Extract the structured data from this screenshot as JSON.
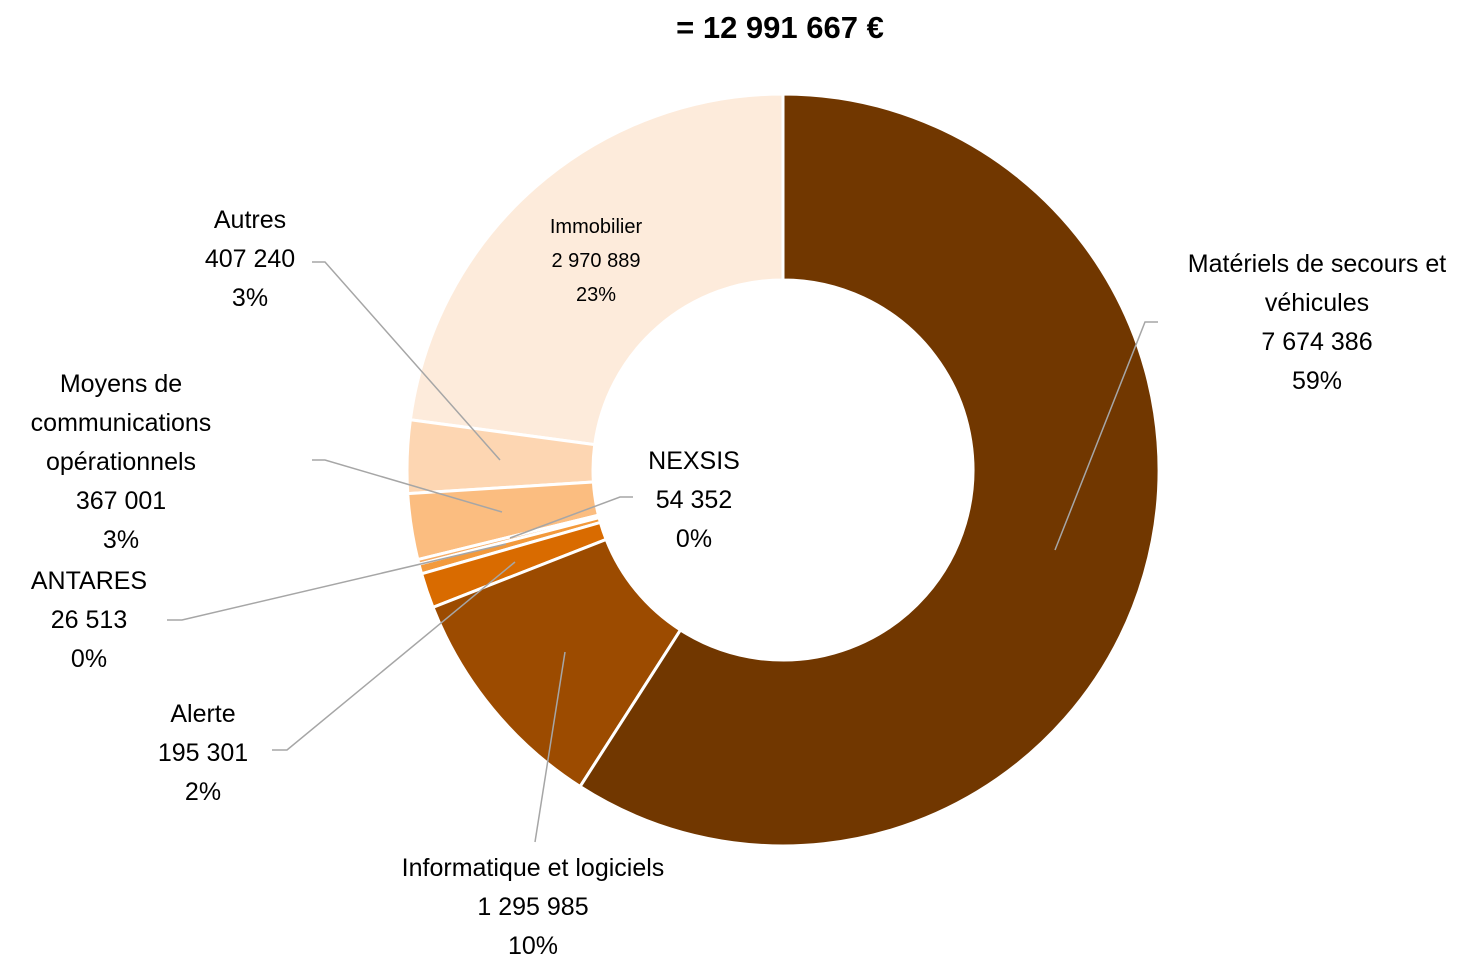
{
  "chart_data": {
    "type": "donut",
    "title": "= 12 991 667 €",
    "categories": [
      "Matériels de secours et véhicules",
      "Informatique et logiciels",
      "Alerte",
      "NEXSIS",
      "ANTARES",
      "Moyens de communications opérationnels",
      "Autres",
      "Immobilier"
    ],
    "values": [
      7674386,
      1295985,
      195301,
      54352,
      26513,
      367001,
      407240,
      2970889
    ],
    "value_labels": [
      "7 674 386",
      "1 295 985",
      "195 301",
      "54 352",
      "26 513",
      "367 001",
      "407 240",
      "2 970 889"
    ],
    "percent_labels": [
      "59%",
      "10%",
      "2%",
      "0%",
      "0%",
      "3%",
      "3%",
      "23%"
    ],
    "colors": [
      "#713700",
      "#9c4b00",
      "#d96b00",
      "#f39a3c",
      "#f6ad66",
      "#fbbd80",
      "#fdd6b2",
      "#fdebdb"
    ]
  }
}
